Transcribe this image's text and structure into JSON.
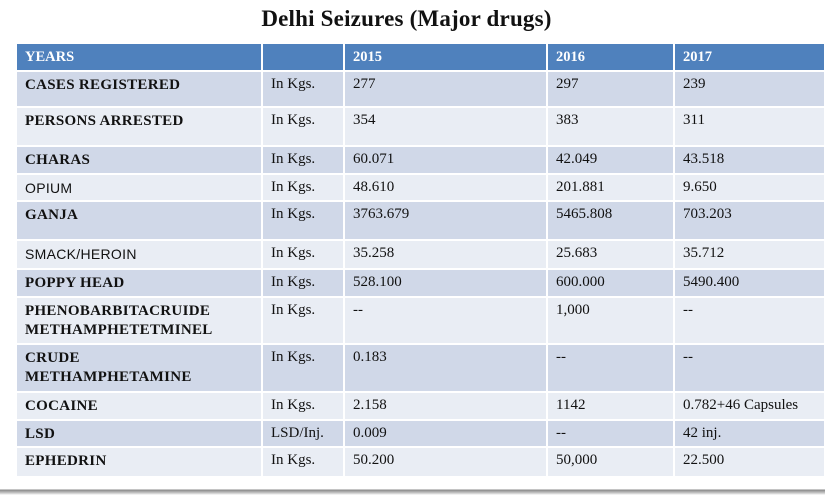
{
  "title": "Delhi Seizures (Major drugs)",
  "header": [
    "YEARS",
    "",
    "2015",
    "2016",
    "2017"
  ],
  "rows": [
    {
      "name": "CASES REGISTERED",
      "unit": "In Kgs.",
      "y2015": "277",
      "y2016": "297",
      "y2017": "239"
    },
    {
      "name": "PERSONS ARRESTED",
      "unit": "In Kgs.",
      "y2015": "354",
      "y2016": "383",
      "y2017": "311"
    },
    {
      "name": "CHARAS",
      "unit": "In Kgs.",
      "y2015": "60.071",
      "y2016": "42.049",
      "y2017": "43.518"
    },
    {
      "name": "OPIUM",
      "unit": "In Kgs.",
      "y2015": "48.610",
      "y2016": "201.881",
      "y2017": "9.650"
    },
    {
      "name": "GANJA",
      "unit": "In Kgs.",
      "y2015": "3763.679",
      "y2016": "5465.808",
      "y2017": "703.203"
    },
    {
      "name": "SMACK/HEROIN",
      "unit": "In Kgs.",
      "y2015": "35.258",
      "y2016": "25.683",
      "y2017": "35.712"
    },
    {
      "name": "POPPY HEAD",
      "unit": "In Kgs.",
      "y2015": "528.100",
      "y2016": "600.000",
      "y2017": "5490.400"
    },
    {
      "name_line1": "PHENOBARBITACRUIDE",
      "name_line2": "METHAMPHETETMINEL",
      "unit": "In Kgs.",
      "y2015": "--",
      "y2016": "1,000",
      "y2017": "--"
    },
    {
      "name_line1": "CRUDE",
      "name_line2": "METHAMPHETAMINE",
      "unit": "In Kgs.",
      "y2015": "0.183",
      "y2016": "--",
      "y2017": "--"
    },
    {
      "name": "COCAINE",
      "unit": "In Kgs.",
      "y2015": "2.158",
      "y2016": "1142",
      "y2017": "0.782+46 Capsules"
    },
    {
      "name": "LSD",
      "unit": "LSD/Inj.",
      "y2015": "0.009",
      "y2016": "--",
      "y2017": "42 inj."
    },
    {
      "name": "EPHEDRIN",
      "unit": "In Kgs.",
      "y2015": "50.200",
      "y2016": "50,000",
      "y2017": "22.500"
    }
  ]
}
